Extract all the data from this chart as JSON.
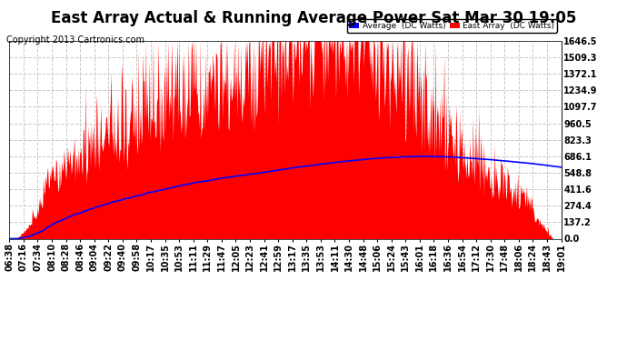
{
  "title": "East Array Actual & Running Average Power Sat Mar 30 19:05",
  "copyright": "Copyright 2013 Cartronics.com",
  "ylabel_right_ticks": [
    0.0,
    137.2,
    274.4,
    411.6,
    548.8,
    686.1,
    823.3,
    960.5,
    1097.7,
    1234.9,
    1372.1,
    1509.3,
    1646.5
  ],
  "ymax": 1646.5,
  "legend_labels": [
    "Average  (DC Watts)",
    "East Array  (DC Watts)"
  ],
  "legend_colors": [
    "#0000ff",
    "#ff0000"
  ],
  "bg_color": "#ffffff",
  "plot_bg_color": "#ffffff",
  "grid_color": "#c8c8c8",
  "fill_color": "#ff0000",
  "line_color": "#0000ff",
  "title_fontsize": 12,
  "tick_fontsize": 7,
  "copyright_fontsize": 7
}
